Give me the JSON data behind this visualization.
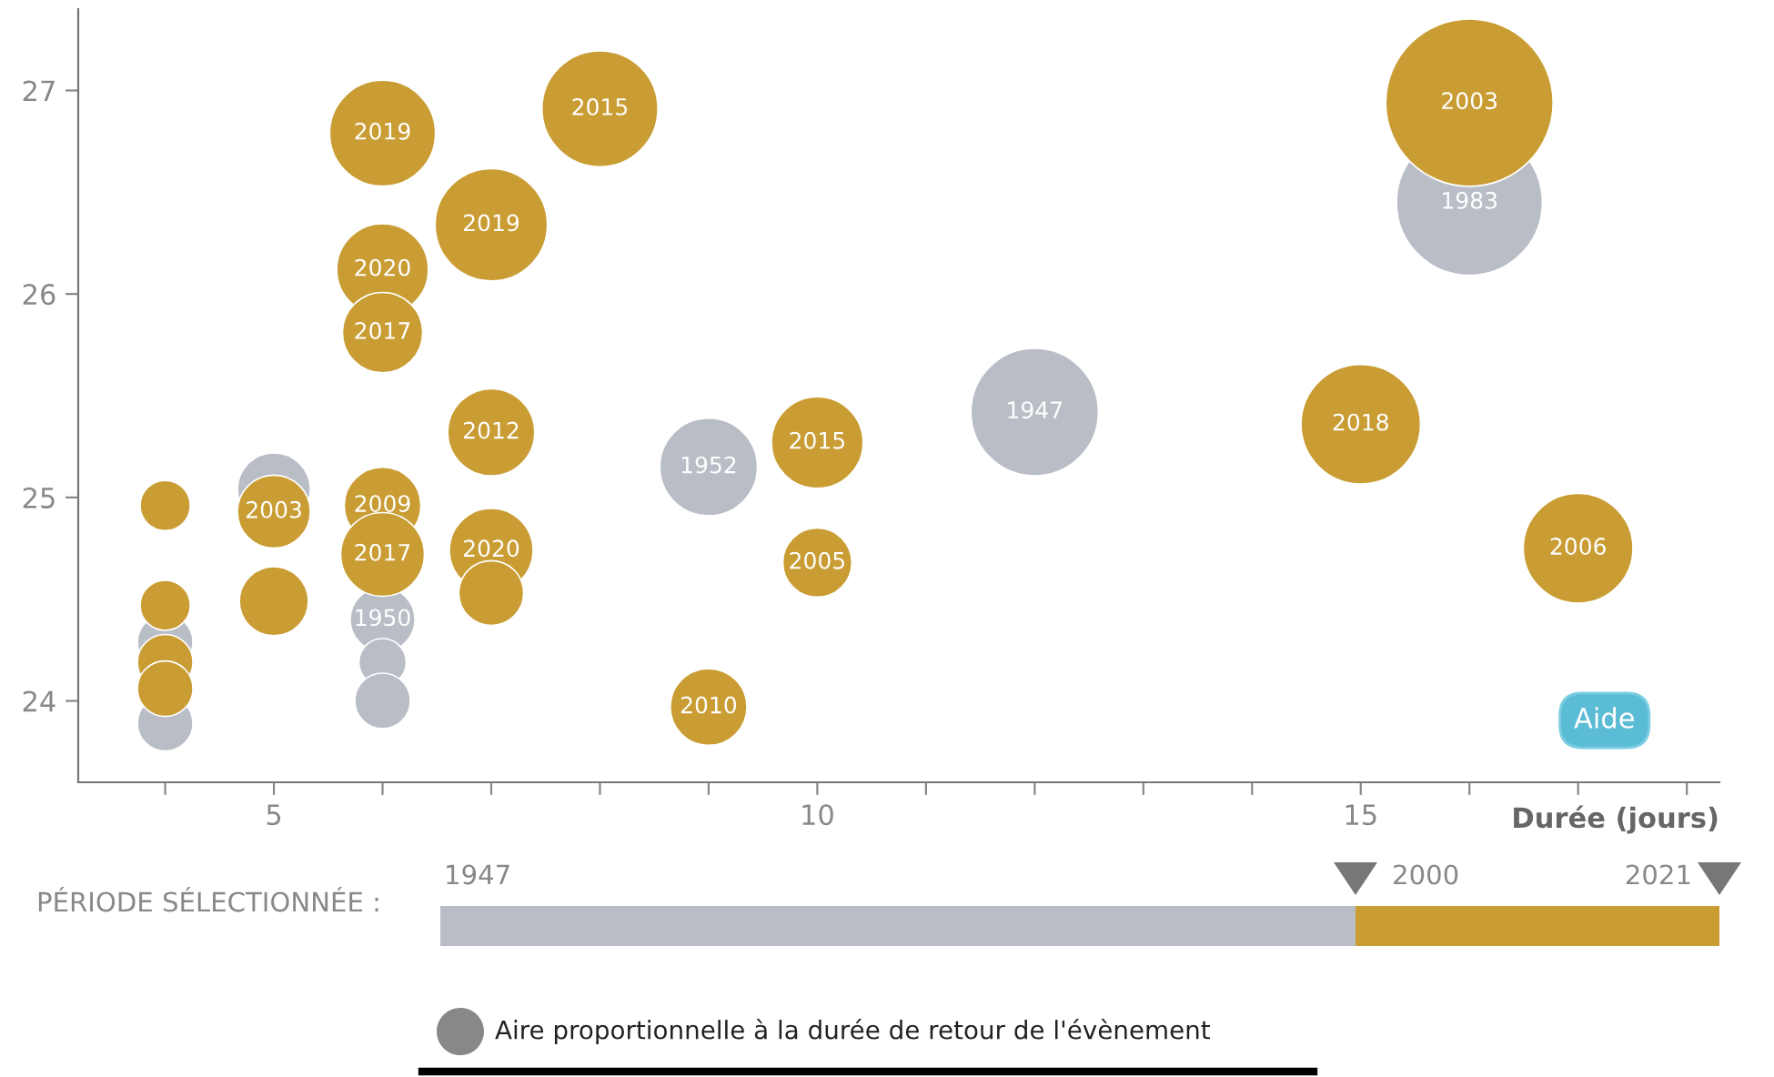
{
  "chart_data": {
    "type": "bubble",
    "xlabel": "Durée (jours)",
    "xlim": [
      3.2,
      18.3
    ],
    "ylim": [
      23.6,
      27.4
    ],
    "xticks": [
      {
        "value": 4,
        "label": null
      },
      5,
      {
        "value": 6,
        "label": null
      },
      {
        "value": 7,
        "label": null
      },
      {
        "value": 8,
        "label": null
      },
      {
        "value": 9,
        "label": null
      },
      10,
      {
        "value": 11,
        "label": null
      },
      {
        "value": 12,
        "label": null
      },
      {
        "value": 13,
        "label": null
      },
      {
        "value": 14,
        "label": null
      },
      15,
      {
        "value": 16,
        "label": null
      },
      {
        "value": 17,
        "label": null
      },
      {
        "value": 18,
        "label": null
      }
    ],
    "yticks": [
      24,
      25,
      26,
      27
    ],
    "grid": false,
    "marker": "circle",
    "series": [
      {
        "color": "#b9bdc6",
        "x": [
          12,
          16,
          9,
          5,
          6,
          6,
          6,
          4,
          4
        ],
        "values": [
          25.42,
          26.45,
          25.15,
          25.04,
          24.4,
          24.19,
          24.0,
          24.29,
          23.89
        ],
        "sizes": [
          0.58,
          0.76,
          0.34,
          0.19,
          0.15,
          0.08,
          0.11,
          0.11,
          0.11
        ]
      },
      {
        "color": "#c99d33",
        "x": [
          16,
          8,
          6,
          7,
          6,
          6,
          7,
          10,
          15,
          17,
          6,
          5,
          4,
          6,
          7,
          7,
          10,
          9,
          5,
          4,
          4,
          4
        ],
        "values": [
          26.94,
          26.91,
          26.79,
          26.34,
          26.12,
          25.81,
          25.32,
          25.27,
          25.36,
          24.75,
          24.96,
          24.93,
          24.96,
          24.72,
          24.74,
          24.53,
          24.68,
          23.97,
          24.49,
          24.47,
          24.19,
          24.06
        ],
        "sizes": [
          1,
          0.48,
          0.4,
          0.45,
          0.3,
          0.23,
          0.27,
          0.3,
          0.51,
          0.43,
          0.21,
          0.19,
          0.09,
          0.25,
          0.25,
          0.15,
          0.17,
          0.21,
          0.17,
          0.09,
          0.11,
          0.11
        ]
      }
    ],
    "annotations": [
      {
        "text": "1947",
        "x": 12,
        "y": 25.42
      },
      {
        "text": "1983",
        "x": 16,
        "y": 26.45
      },
      {
        "text": "1952",
        "x": 9,
        "y": 25.15
      },
      {
        "text": "1950",
        "x": 6,
        "y": 24.4
      },
      {
        "text": "2003",
        "x": 16,
        "y": 26.94
      },
      {
        "text": "2015",
        "x": 8,
        "y": 26.91
      },
      {
        "text": "2019",
        "x": 6,
        "y": 26.79
      },
      {
        "text": "2019",
        "x": 7,
        "y": 26.34
      },
      {
        "text": "2020",
        "x": 6,
        "y": 26.12
      },
      {
        "text": "2017",
        "x": 6,
        "y": 25.81
      },
      {
        "text": "2012",
        "x": 7,
        "y": 25.32
      },
      {
        "text": "2015",
        "x": 10,
        "y": 25.27
      },
      {
        "text": "2018",
        "x": 15,
        "y": 25.36
      },
      {
        "text": "2006",
        "x": 17,
        "y": 24.75
      },
      {
        "text": "2009",
        "x": 6,
        "y": 24.96
      },
      {
        "text": "2003",
        "x": 5,
        "y": 24.93
      },
      {
        "text": "2017",
        "x": 6,
        "y": 24.72
      },
      {
        "text": "2020",
        "x": 7,
        "y": 24.74
      },
      {
        "text": "2005",
        "x": 10,
        "y": 24.68
      },
      {
        "text": "2010",
        "x": 9,
        "y": 23.97
      },
      "Aide",
      "PÉRIODE SÉLECTIONNÉE :",
      "1947",
      "2000",
      "2021",
      "Aire proportionnelle à la durée de retour de l'évènement"
    ]
  }
}
